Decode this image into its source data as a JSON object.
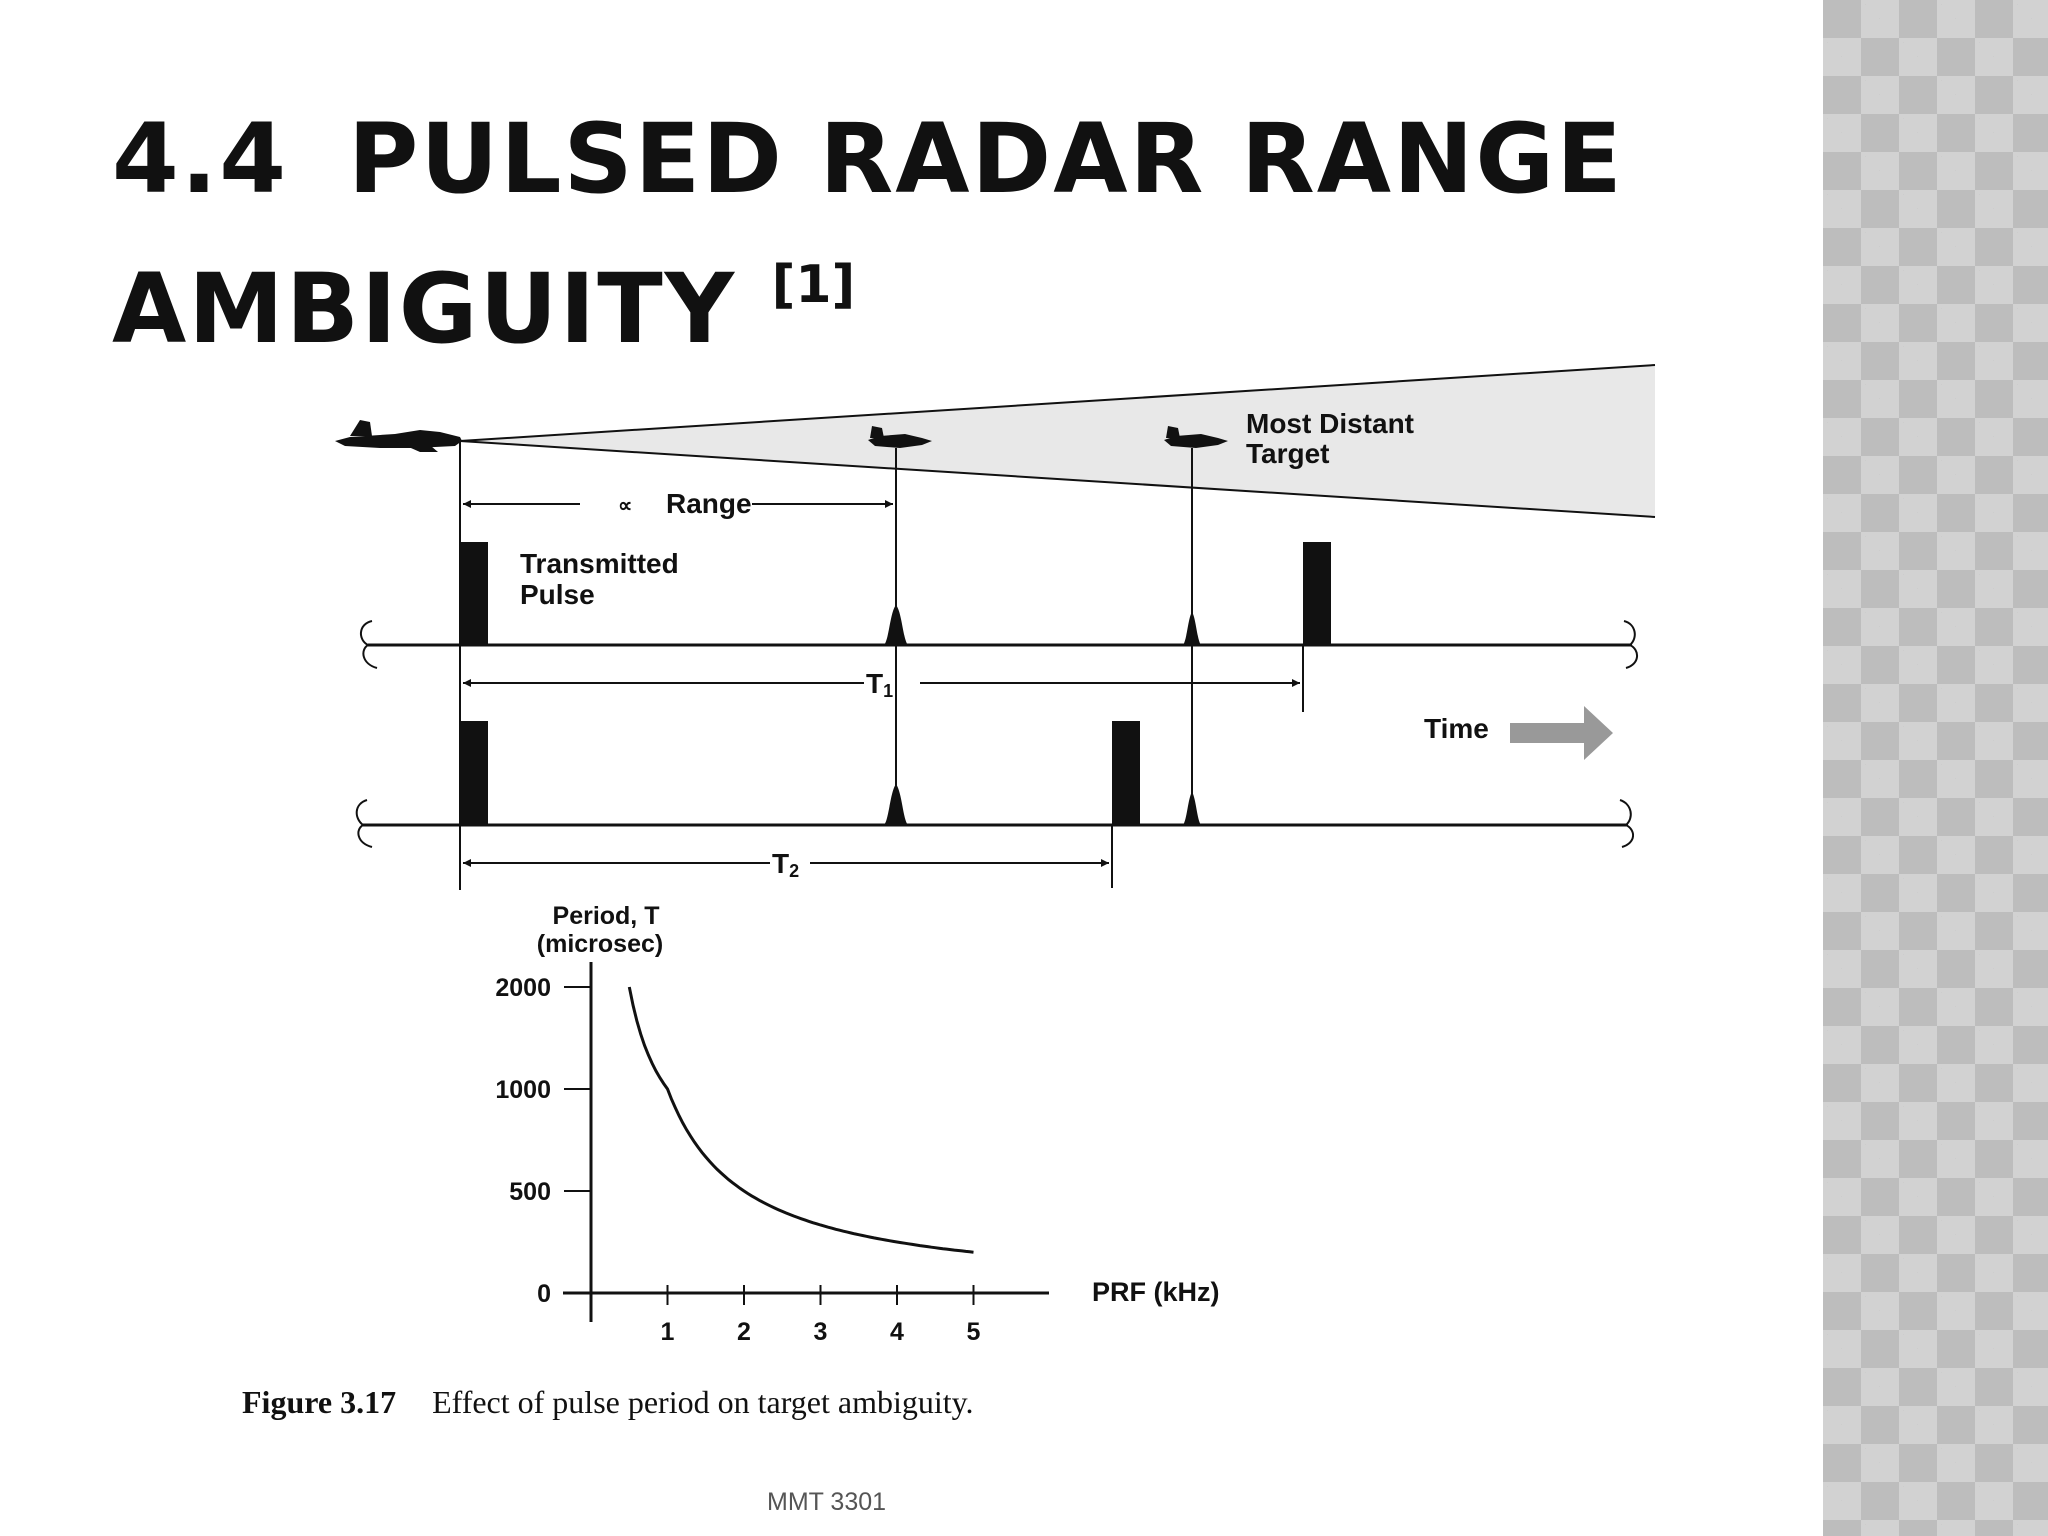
{
  "slide": {
    "title_number": "4.4",
    "title_text": "Pulsed Radar Range Ambiguity",
    "title_reference": "[1]",
    "footer": "MMT 3301"
  },
  "figure": {
    "labels": {
      "most_distant_line1": "Most Distant",
      "most_distant_line2": "Target",
      "range_symbol": "∝",
      "range": "Range",
      "transmitted_line1": "Transmitted",
      "transmitted_line2": "Pulse",
      "t1": "T",
      "t1_sub": "1",
      "t2": "T",
      "t2_sub": "2",
      "time": "Time"
    },
    "colors": {
      "ink": "#111111",
      "beam_fill": "#e8e8e8",
      "time_arrow": "#999999"
    },
    "caption_number": "Figure 3.17",
    "caption_text": "Effect of pulse period on target ambiguity."
  },
  "chart_data": {
    "type": "line",
    "ylabel_line1": "Period, T",
    "ylabel_line2": "(microsec)",
    "xlabel": "PRF (kHz)",
    "xticks": [
      1,
      2,
      3,
      4,
      5
    ],
    "yticks": [
      0,
      500,
      1000,
      2000
    ],
    "ytick_labels": [
      "0",
      "500",
      "1000",
      "2000"
    ],
    "x": [
      0.5,
      0.75,
      1,
      1.5,
      2,
      2.5,
      3,
      3.5,
      4,
      4.5,
      5
    ],
    "y": [
      2000,
      1333,
      1000,
      667,
      500,
      400,
      333,
      286,
      250,
      222,
      200
    ]
  }
}
